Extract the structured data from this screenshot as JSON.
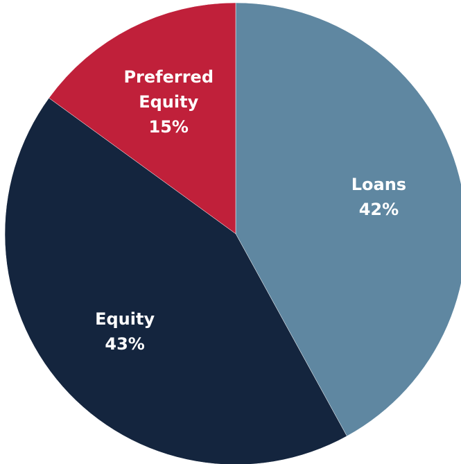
{
  "chart_data": {
    "type": "pie",
    "categories": [
      "Loans",
      "Equity",
      "Preferred Equity"
    ],
    "values": [
      42,
      43,
      15
    ],
    "value_labels": [
      "42%",
      "43%",
      "15%"
    ],
    "colors": [
      "#5f87a1",
      "#14253e",
      "#c0203a"
    ]
  }
}
